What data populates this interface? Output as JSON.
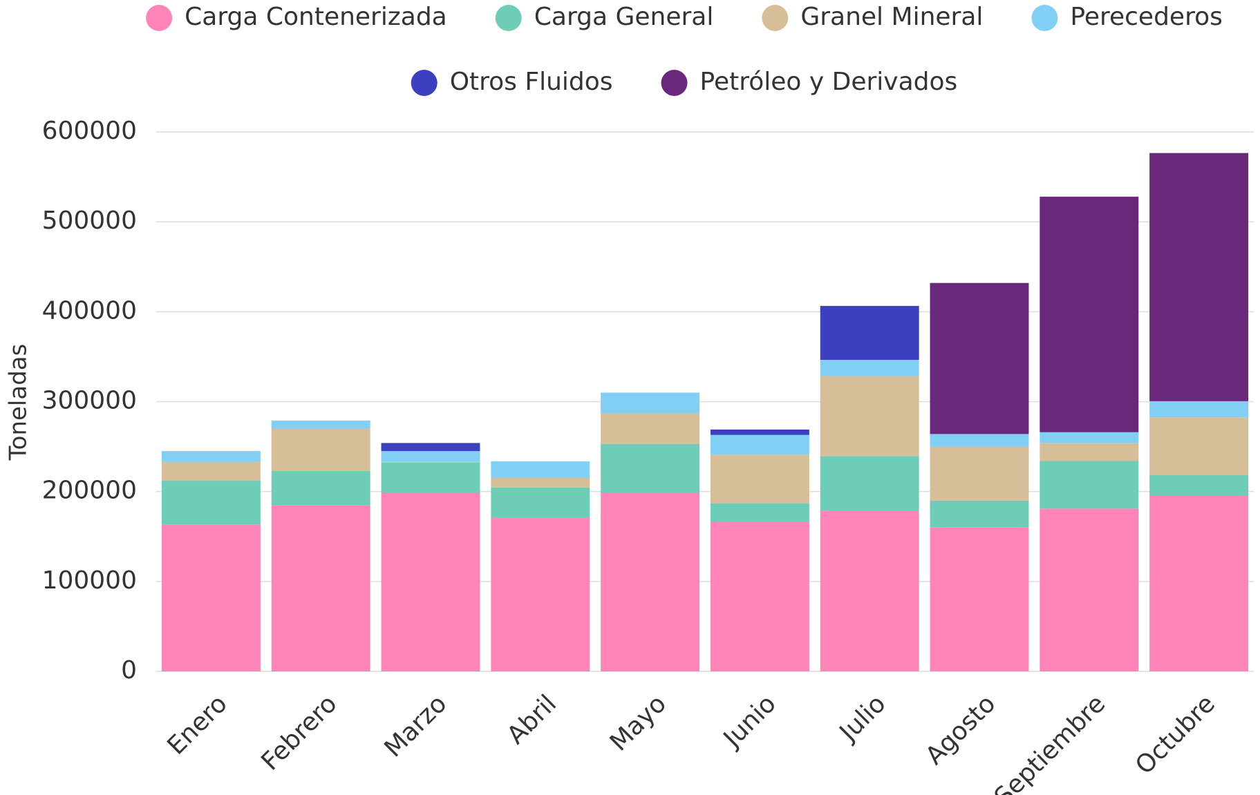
{
  "chart_data": {
    "type": "stacked_bar",
    "y_label": "Toneladas",
    "categories": [
      "Enero",
      "Febrero",
      "Marzo",
      "Abril",
      "Mayo",
      "Junio",
      "Julio",
      "Agosto",
      "Septiembre",
      "Octubre"
    ],
    "series": [
      {
        "name": "Carga Contenerizada",
        "color": "#ff85b8",
        "values": [
          163000,
          185000,
          199000,
          170500,
          199000,
          166000,
          178500,
          160000,
          181000,
          195500
        ]
      },
      {
        "name": "Carga General",
        "color": "#6ecdb7",
        "values": [
          49000,
          38000,
          33000,
          34000,
          54000,
          21000,
          61000,
          30000,
          53000,
          23000
        ]
      },
      {
        "name": "Granel Mineral",
        "color": "#d6bf98",
        "values": [
          21000,
          47000,
          1000,
          11000,
          34000,
          54000,
          89000,
          60000,
          20000,
          64000
        ]
      },
      {
        "name": "Perecederos",
        "color": "#82cff5",
        "values": [
          12000,
          9000,
          12000,
          18000,
          23000,
          22000,
          18000,
          14000,
          12000,
          18000
        ]
      },
      {
        "name": "Otros Fluidos",
        "color": "#3c3fbf",
        "values": [
          null,
          null,
          9000,
          null,
          null,
          6000,
          60000,
          null,
          null,
          null
        ]
      },
      {
        "name": "Petróleo y Derivados",
        "color": "#6a287a",
        "values": [
          null,
          null,
          null,
          null,
          null,
          null,
          null,
          168000,
          262000,
          276000
        ]
      }
    ],
    "ylim": [
      0,
      600000
    ],
    "yticks": [
      0,
      100000,
      200000,
      300000,
      400000,
      500000,
      600000
    ],
    "grid": true
  }
}
